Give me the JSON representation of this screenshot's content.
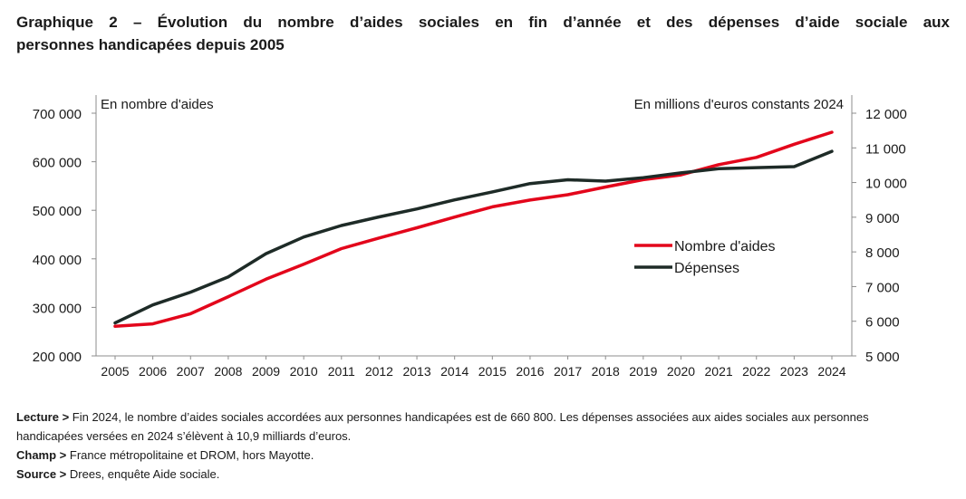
{
  "title_line1": "Graphique 2 – Évolution du nombre d’aides sociales en fin d’année et des dépenses d’aide sociale aux",
  "title_line2": "personnes handicapées depuis 2005",
  "chart_data": {
    "type": "line",
    "left_axis_label": "En nombre d'aides",
    "right_axis_label": "En millions d'euros constants 2024",
    "x": [
      "2005",
      "2006",
      "2007",
      "2008",
      "2009",
      "2010",
      "2011",
      "2012",
      "2013",
      "2014",
      "2015",
      "2016",
      "2017",
      "2018",
      "2019",
      "2020",
      "2021",
      "2022",
      "2023",
      "2024"
    ],
    "left_ylim": [
      200000,
      700000
    ],
    "left_ticks": [
      "200 000",
      "300 000",
      "400 000",
      "500 000",
      "600 000",
      "700 000"
    ],
    "left_tick_values": [
      200000,
      300000,
      400000,
      500000,
      600000,
      700000
    ],
    "right_ylim": [
      5000,
      12000
    ],
    "right_ticks": [
      "5 000",
      "6 000",
      "7 000",
      "8 000",
      "9 000",
      "10 000",
      "11 000",
      "12 000"
    ],
    "right_tick_values": [
      5000,
      6000,
      7000,
      8000,
      9000,
      10000,
      11000,
      12000
    ],
    "series": [
      {
        "name": "Nombre d'aides",
        "axis": "left",
        "color": "#e3061b",
        "values": [
          261000,
          266000,
          287000,
          322000,
          358000,
          389000,
          421000,
          443000,
          464000,
          486000,
          507000,
          521000,
          532000,
          548000,
          563000,
          573000,
          594000,
          609000,
          636000,
          660800
        ]
      },
      {
        "name": "Dépenses",
        "axis": "right",
        "color": "#1e2b27",
        "values": [
          5950,
          6470,
          6840,
          7280,
          7950,
          8430,
          8760,
          9010,
          9240,
          9500,
          9730,
          9970,
          10080,
          10040,
          10140,
          10280,
          10400,
          10430,
          10460,
          10900
        ]
      }
    ],
    "legend_position": "right-middle",
    "grid": false
  },
  "notes": {
    "lecture_label": "Lecture >",
    "lecture_text": " Fin 2024, le nombre d’aides sociales accordées aux personnes handicapées est de 660 800. Les dépenses associées aux aides sociales aux personnes handicapées versées en 2024 s’élèvent à 10,9 milliards d’euros.",
    "champ_label": "Champ >",
    "champ_text": " France métropolitaine et DROM, hors Mayotte.",
    "source_label": "Source >",
    "source_text": " Drees, enquête Aide sociale."
  }
}
